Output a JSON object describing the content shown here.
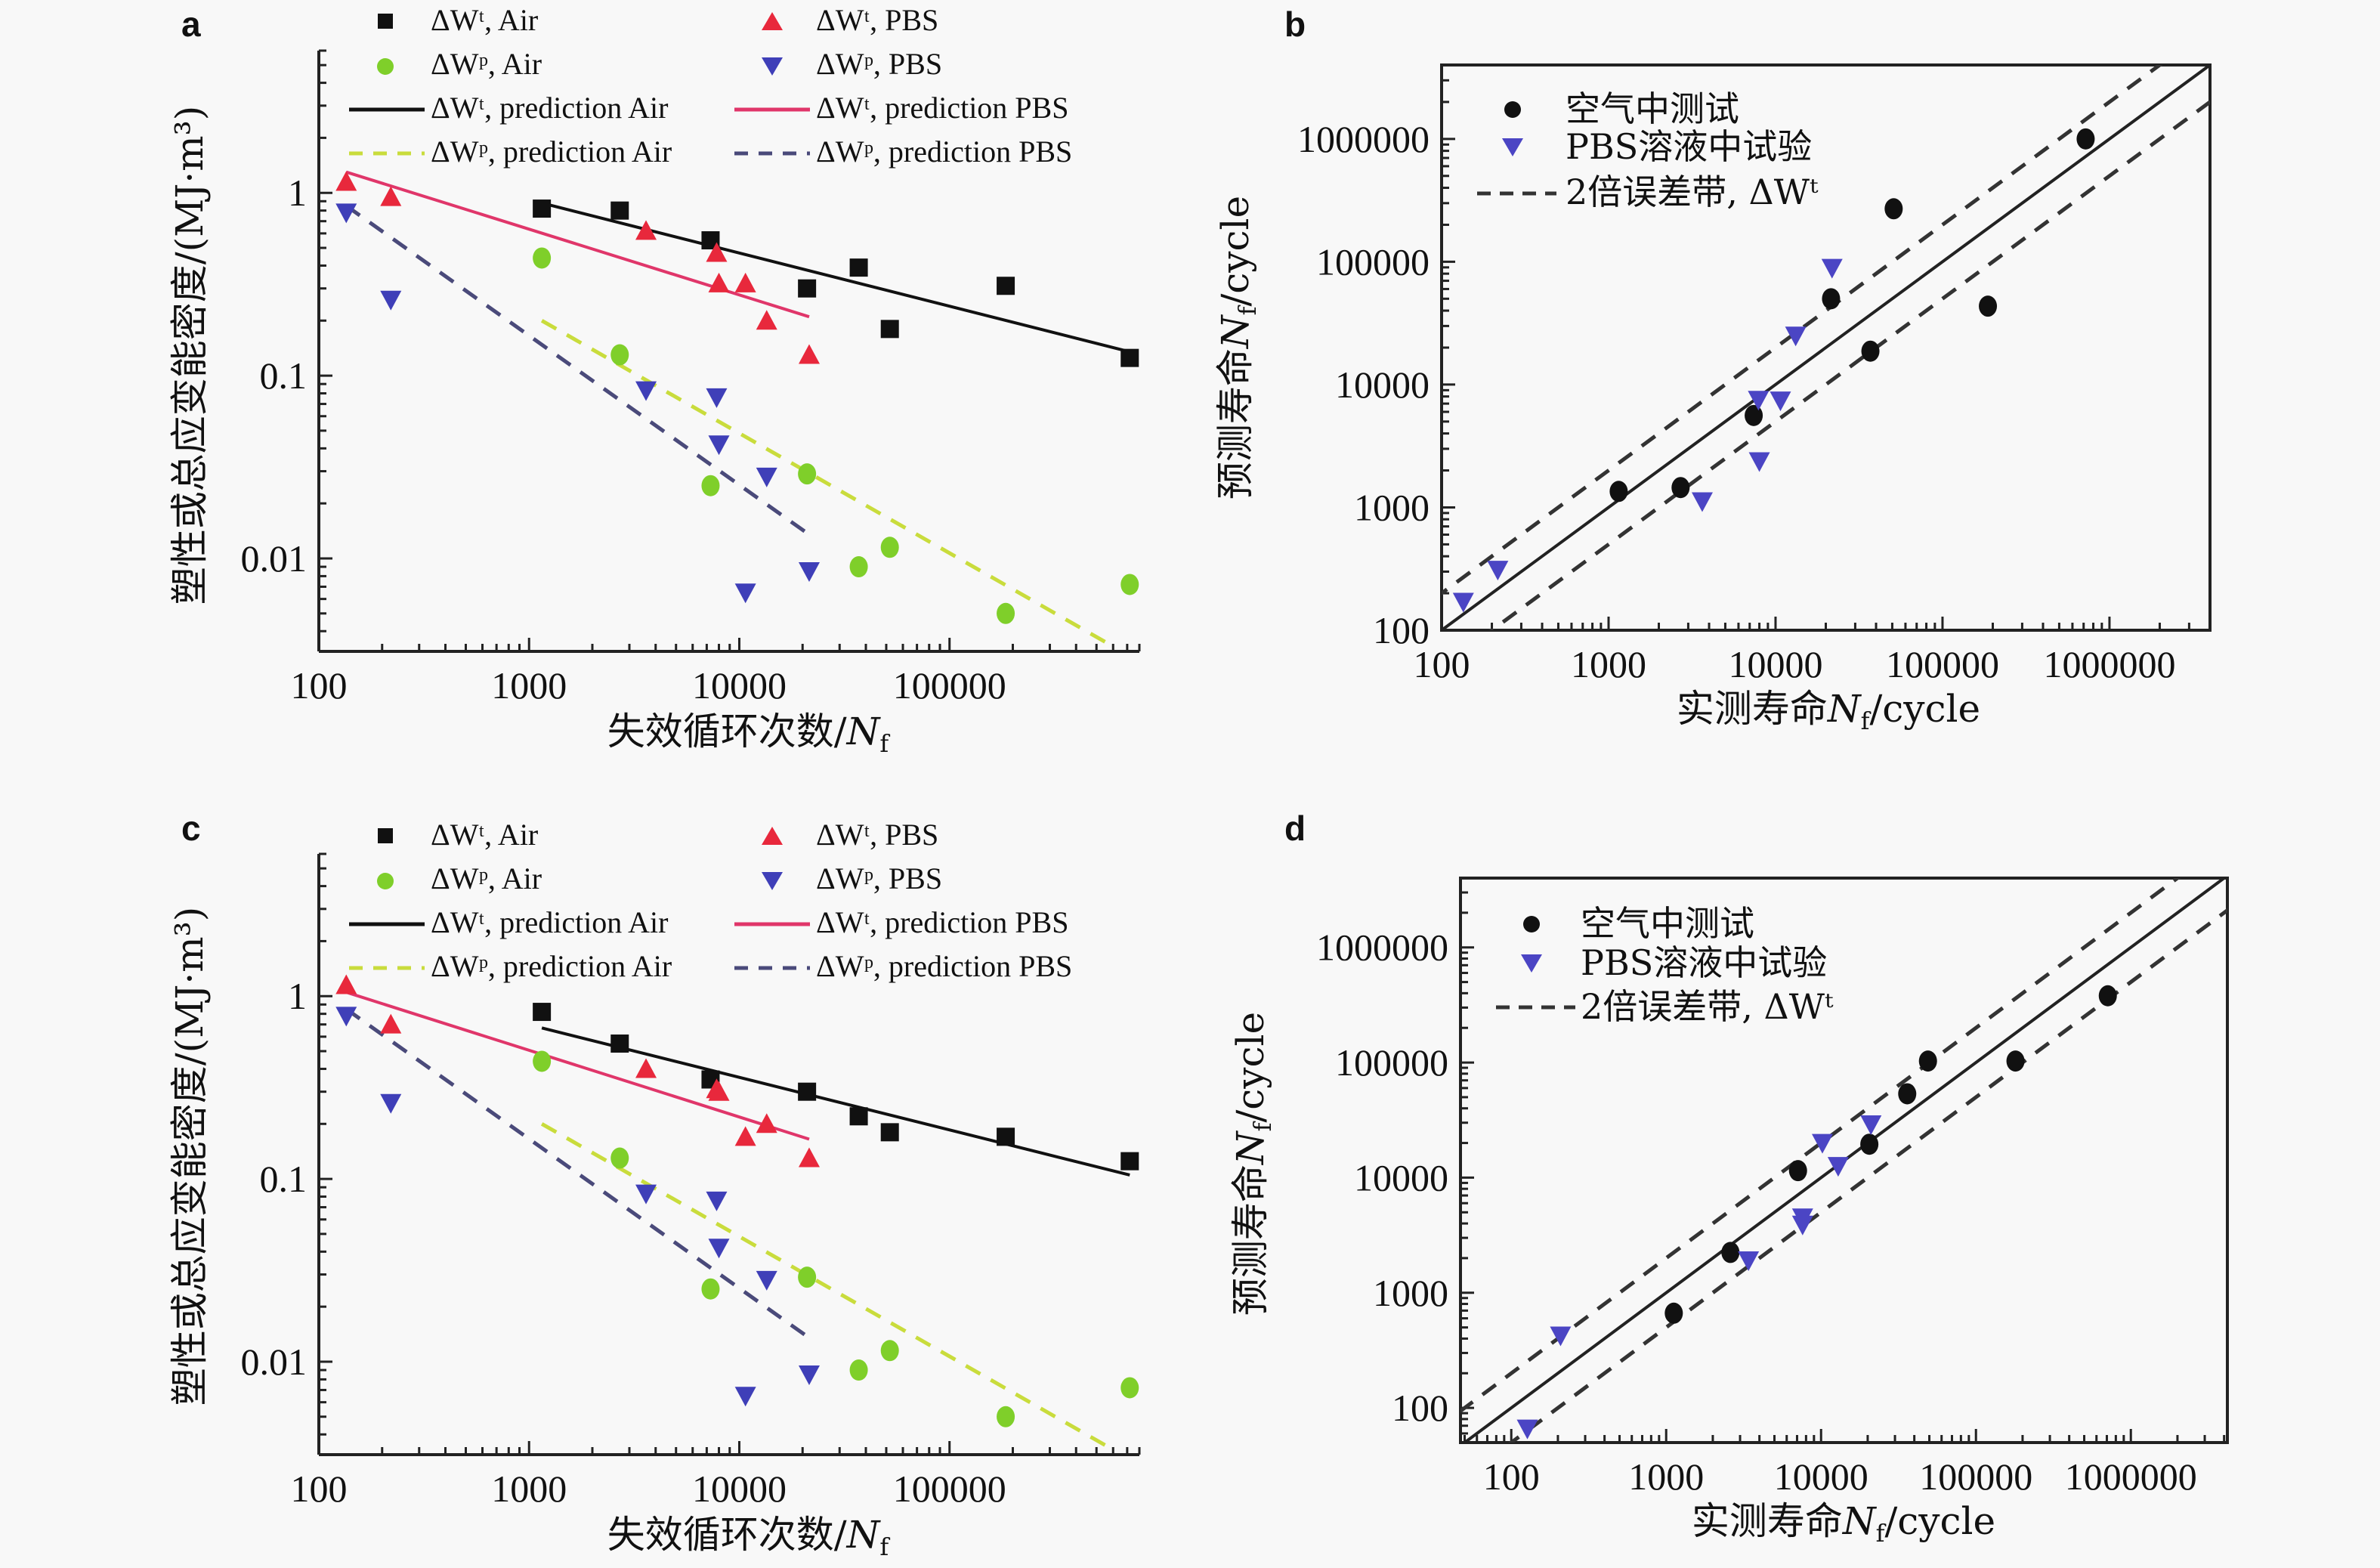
{
  "chart_data": [
    {
      "panel": "a",
      "type": "scatter",
      "xscale": "log",
      "yscale": "log",
      "xlabel": "失效循环次数/Nf",
      "ylabel": "塑性或总应变能密度/(MJ·m3)",
      "xlim": [
        100,
        800000
      ],
      "ylim": [
        0.0031,
        6
      ],
      "xticks": [
        "100",
        "1000",
        "10000",
        "100000"
      ],
      "xtick_values": [
        100,
        1000,
        10000,
        100000
      ],
      "yticks": [
        "0.01",
        "0.1",
        "1"
      ],
      "ytick_values": [
        0.01,
        0.1,
        1
      ],
      "legend": "top",
      "series": [
        {
          "name": "ΔWt, Air",
          "marker": "square",
          "color": "#111111",
          "x": [
            1150,
            2700,
            7300,
            21000,
            37000,
            52000,
            185000,
            720000
          ],
          "y": [
            0.82,
            0.8,
            0.55,
            0.3,
            0.39,
            0.18,
            0.31,
            0.125
          ]
        },
        {
          "name": "ΔWt, PBS",
          "marker": "triangle-up",
          "color": "#e8283c",
          "x": [
            135,
            220,
            3600,
            7800,
            8000,
            10700,
            13500,
            21500
          ],
          "y": [
            1.15,
            0.95,
            0.62,
            0.47,
            0.32,
            0.32,
            0.2,
            0.13
          ]
        },
        {
          "name": "ΔWp, Air",
          "marker": "circle",
          "color": "#7fcf2a",
          "x": [
            1150,
            2700,
            7300,
            21000,
            37000,
            52000,
            185000,
            720000
          ],
          "y": [
            0.44,
            0.13,
            0.025,
            0.029,
            0.009,
            0.0115,
            0.005,
            0.0072
          ]
        },
        {
          "name": "ΔWp, PBS",
          "marker": "triangle-down",
          "color": "#3f3fb8",
          "x": [
            135,
            220,
            3600,
            7800,
            8000,
            10700,
            13500,
            21500
          ],
          "y": [
            0.78,
            0.26,
            0.083,
            0.076,
            0.042,
            0.0065,
            0.028,
            0.0085
          ]
        }
      ],
      "lines": [
        {
          "name": "ΔWt, prediction Air",
          "style": "solid",
          "color": "#111111",
          "x": [
            1150,
            720000
          ],
          "y": [
            0.88,
            0.135
          ]
        },
        {
          "name": "ΔWt, prediction PBS",
          "style": "solid",
          "color": "#e0366a",
          "x": [
            135,
            21500
          ],
          "y": [
            1.3,
            0.21
          ]
        },
        {
          "name": "ΔWp, prediction Air",
          "style": "dashed",
          "color": "#c9dc3c",
          "x": [
            1150,
            600000
          ],
          "y": [
            0.2,
            0.0033
          ]
        },
        {
          "name": "ΔWp, prediction PBS",
          "style": "dashed",
          "color": "#4a4a7a",
          "x": [
            135,
            21500
          ],
          "y": [
            0.85,
            0.0135
          ]
        }
      ]
    },
    {
      "panel": "b",
      "type": "scatter",
      "xscale": "log",
      "yscale": "log",
      "xlabel": "实测寿命Nf/cycle",
      "ylabel": "预测寿命Nf/cycle",
      "xlim": [
        100,
        4000000
      ],
      "ylim": [
        100,
        4000000
      ],
      "xticks": [
        "100",
        "1000",
        "10000",
        "100000",
        "1000000"
      ],
      "xtick_values": [
        100,
        1000,
        10000,
        100000,
        1000000
      ],
      "yticks": [
        "100",
        "1000",
        "10000",
        "100000",
        "1000000"
      ],
      "ytick_values": [
        100,
        1000,
        10000,
        100000,
        1000000
      ],
      "legend": "top-left",
      "series": [
        {
          "name": "空气中测试",
          "marker": "circle",
          "color": "#111111",
          "x": [
            1150,
            2700,
            7400,
            21500,
            37000,
            51000,
            187000,
            720000
          ],
          "y": [
            1350,
            1450,
            5600,
            50000,
            18700,
            270000,
            43500,
            1000000
          ]
        },
        {
          "name": "PBS溶液中试验",
          "marker": "triangle-down",
          "color": "#4b45c4",
          "x": [
            135,
            217,
            3640,
            7900,
            8000,
            10700,
            13200,
            21800
          ],
          "y": [
            170,
            310,
            1120,
            7500,
            2370,
            7400,
            25000,
            89000
          ]
        }
      ],
      "lines": [
        {
          "name": "1:1",
          "style": "solid",
          "color": "#222222",
          "factor": 1
        },
        {
          "name": "2倍误差带, ΔWt",
          "style": "dashed",
          "color": "#333333",
          "factor": 2
        },
        {
          "name": "2倍误差带, ΔWt (lower)",
          "style": "dashed",
          "color": "#333333",
          "factor": 0.5
        }
      ]
    },
    {
      "panel": "c",
      "type": "scatter",
      "xscale": "log",
      "yscale": "log",
      "xlabel": "失效循环次数/Nf",
      "ylabel": "塑性或总应变能密度/(MJ·m3)",
      "xlim": [
        100,
        800000
      ],
      "ylim": [
        0.0031,
        6
      ],
      "xticks": [
        "100",
        "1000",
        "10000",
        "100000"
      ],
      "xtick_values": [
        100,
        1000,
        10000,
        100000
      ],
      "yticks": [
        "0.01",
        "0.1",
        "1"
      ],
      "ytick_values": [
        0.01,
        0.1,
        1
      ],
      "legend": "top",
      "series": [
        {
          "name": "ΔWt, Air",
          "marker": "square",
          "color": "#111111",
          "x": [
            1150,
            2700,
            7300,
            21000,
            37000,
            52000,
            185000,
            720000
          ],
          "y": [
            0.82,
            0.55,
            0.35,
            0.3,
            0.22,
            0.18,
            0.17,
            0.125
          ]
        },
        {
          "name": "ΔWt, PBS",
          "marker": "triangle-up",
          "color": "#e8283c",
          "x": [
            135,
            220,
            3600,
            7800,
            8000,
            10700,
            13500,
            21500
          ],
          "y": [
            1.15,
            0.7,
            0.4,
            0.31,
            0.3,
            0.17,
            0.2,
            0.13
          ]
        },
        {
          "name": "ΔWp, Air",
          "marker": "circle",
          "color": "#7fcf2a",
          "x": [
            1150,
            2700,
            7300,
            21000,
            37000,
            52000,
            185000,
            720000
          ],
          "y": [
            0.44,
            0.13,
            0.025,
            0.029,
            0.009,
            0.0115,
            0.005,
            0.0072
          ]
        },
        {
          "name": "ΔWp, PBS",
          "marker": "triangle-down",
          "color": "#3f3fb8",
          "x": [
            135,
            220,
            3600,
            7800,
            8000,
            10700,
            13500,
            21500
          ],
          "y": [
            0.78,
            0.26,
            0.083,
            0.076,
            0.042,
            0.0065,
            0.028,
            0.0085
          ]
        }
      ],
      "lines": [
        {
          "name": "ΔWt, prediction Air",
          "style": "solid",
          "color": "#111111",
          "x": [
            1150,
            720000
          ],
          "y": [
            0.67,
            0.105
          ]
        },
        {
          "name": "ΔWt, prediction PBS",
          "style": "solid",
          "color": "#e0366a",
          "x": [
            135,
            21500
          ],
          "y": [
            1.05,
            0.165
          ]
        },
        {
          "name": "ΔWp, prediction Air",
          "style": "dashed",
          "color": "#c9dc3c",
          "x": [
            1150,
            600000
          ],
          "y": [
            0.2,
            0.0033
          ]
        },
        {
          "name": "ΔWp, prediction PBS",
          "style": "dashed",
          "color": "#4a4a7a",
          "x": [
            135,
            21500
          ],
          "y": [
            0.85,
            0.0135
          ]
        }
      ]
    },
    {
      "panel": "d",
      "type": "scatter",
      "xscale": "log",
      "yscale": "log",
      "xlabel": "实测寿命Nf/cycle",
      "ylabel": "预测寿命Nf/cycle",
      "xlim": [
        47,
        4200000
      ],
      "ylim": [
        50,
        4000000
      ],
      "xticks": [
        "100",
        "1000",
        "10000",
        "100000",
        "1000000"
      ],
      "xtick_values": [
        100,
        1000,
        10000,
        100000,
        1000000
      ],
      "yticks": [
        "100",
        "1000",
        "10000",
        "100000",
        "1000000"
      ],
      "ytick_values": [
        100,
        1000,
        10000,
        100000,
        1000000
      ],
      "legend": "top-left",
      "series": [
        {
          "name": "空气中测试",
          "marker": "circle",
          "color": "#111111",
          "x": [
            1120,
            2600,
            7100,
            20500,
            36000,
            49000,
            180000,
            710000
          ],
          "y": [
            665,
            2240,
            11500,
            19500,
            53500,
            103000,
            103000,
            380000
          ]
        },
        {
          "name": "PBS溶液中试验",
          "marker": "triangle-down",
          "color": "#4b45c4",
          "x": [
            127,
            208,
            3400,
            7600,
            7600,
            10200,
            12900,
            21000
          ],
          "y": [
            66,
            424,
            1910,
            3900,
            4500,
            20000,
            12600,
            29000
          ]
        }
      ],
      "lines": [
        {
          "name": "1:1",
          "style": "solid",
          "color": "#222222",
          "factor": 1
        },
        {
          "name": "2倍误差带, ΔWt",
          "style": "dashed",
          "color": "#333333",
          "factor": 2
        },
        {
          "name": "2倍误差带, ΔWt (lower)",
          "style": "dashed",
          "color": "#333333",
          "factor": 0.5
        }
      ]
    }
  ],
  "panels": {
    "a": {
      "label": "a"
    },
    "b": {
      "label": "b"
    },
    "c": {
      "label": "c"
    },
    "d": {
      "label": "d"
    }
  },
  "legend_ac": {
    "wt_air": "ΔWᵗ, Air",
    "wt_pbs": "ΔWᵗ, PBS",
    "wp_air": "ΔWᵖ, Air",
    "wp_pbs": "ΔWᵖ, PBS",
    "wt_pred_air": "ΔWᵗ, prediction Air",
    "wt_pred_pbs": "ΔWᵗ, prediction PBS",
    "wp_pred_air": "ΔWᵖ, prediction Air",
    "wp_pred_pbs": "ΔWᵖ, prediction PBS"
  },
  "legend_bd": {
    "air": "空气中测试",
    "pbs": "PBS溶液中试验",
    "band": "2倍误差带, ΔWᵗ"
  },
  "axis_titles": {
    "ac_x": "失效循环次数/",
    "ac_x_sym": "N",
    "ac_x_sub": "f",
    "ac_y": "塑性或总应变能密度/(MJ·m³)",
    "bd_x": "实测寿命",
    "bd_y": "预测寿命",
    "sym": "N",
    "sub": "f",
    "unit": "/cycle"
  }
}
